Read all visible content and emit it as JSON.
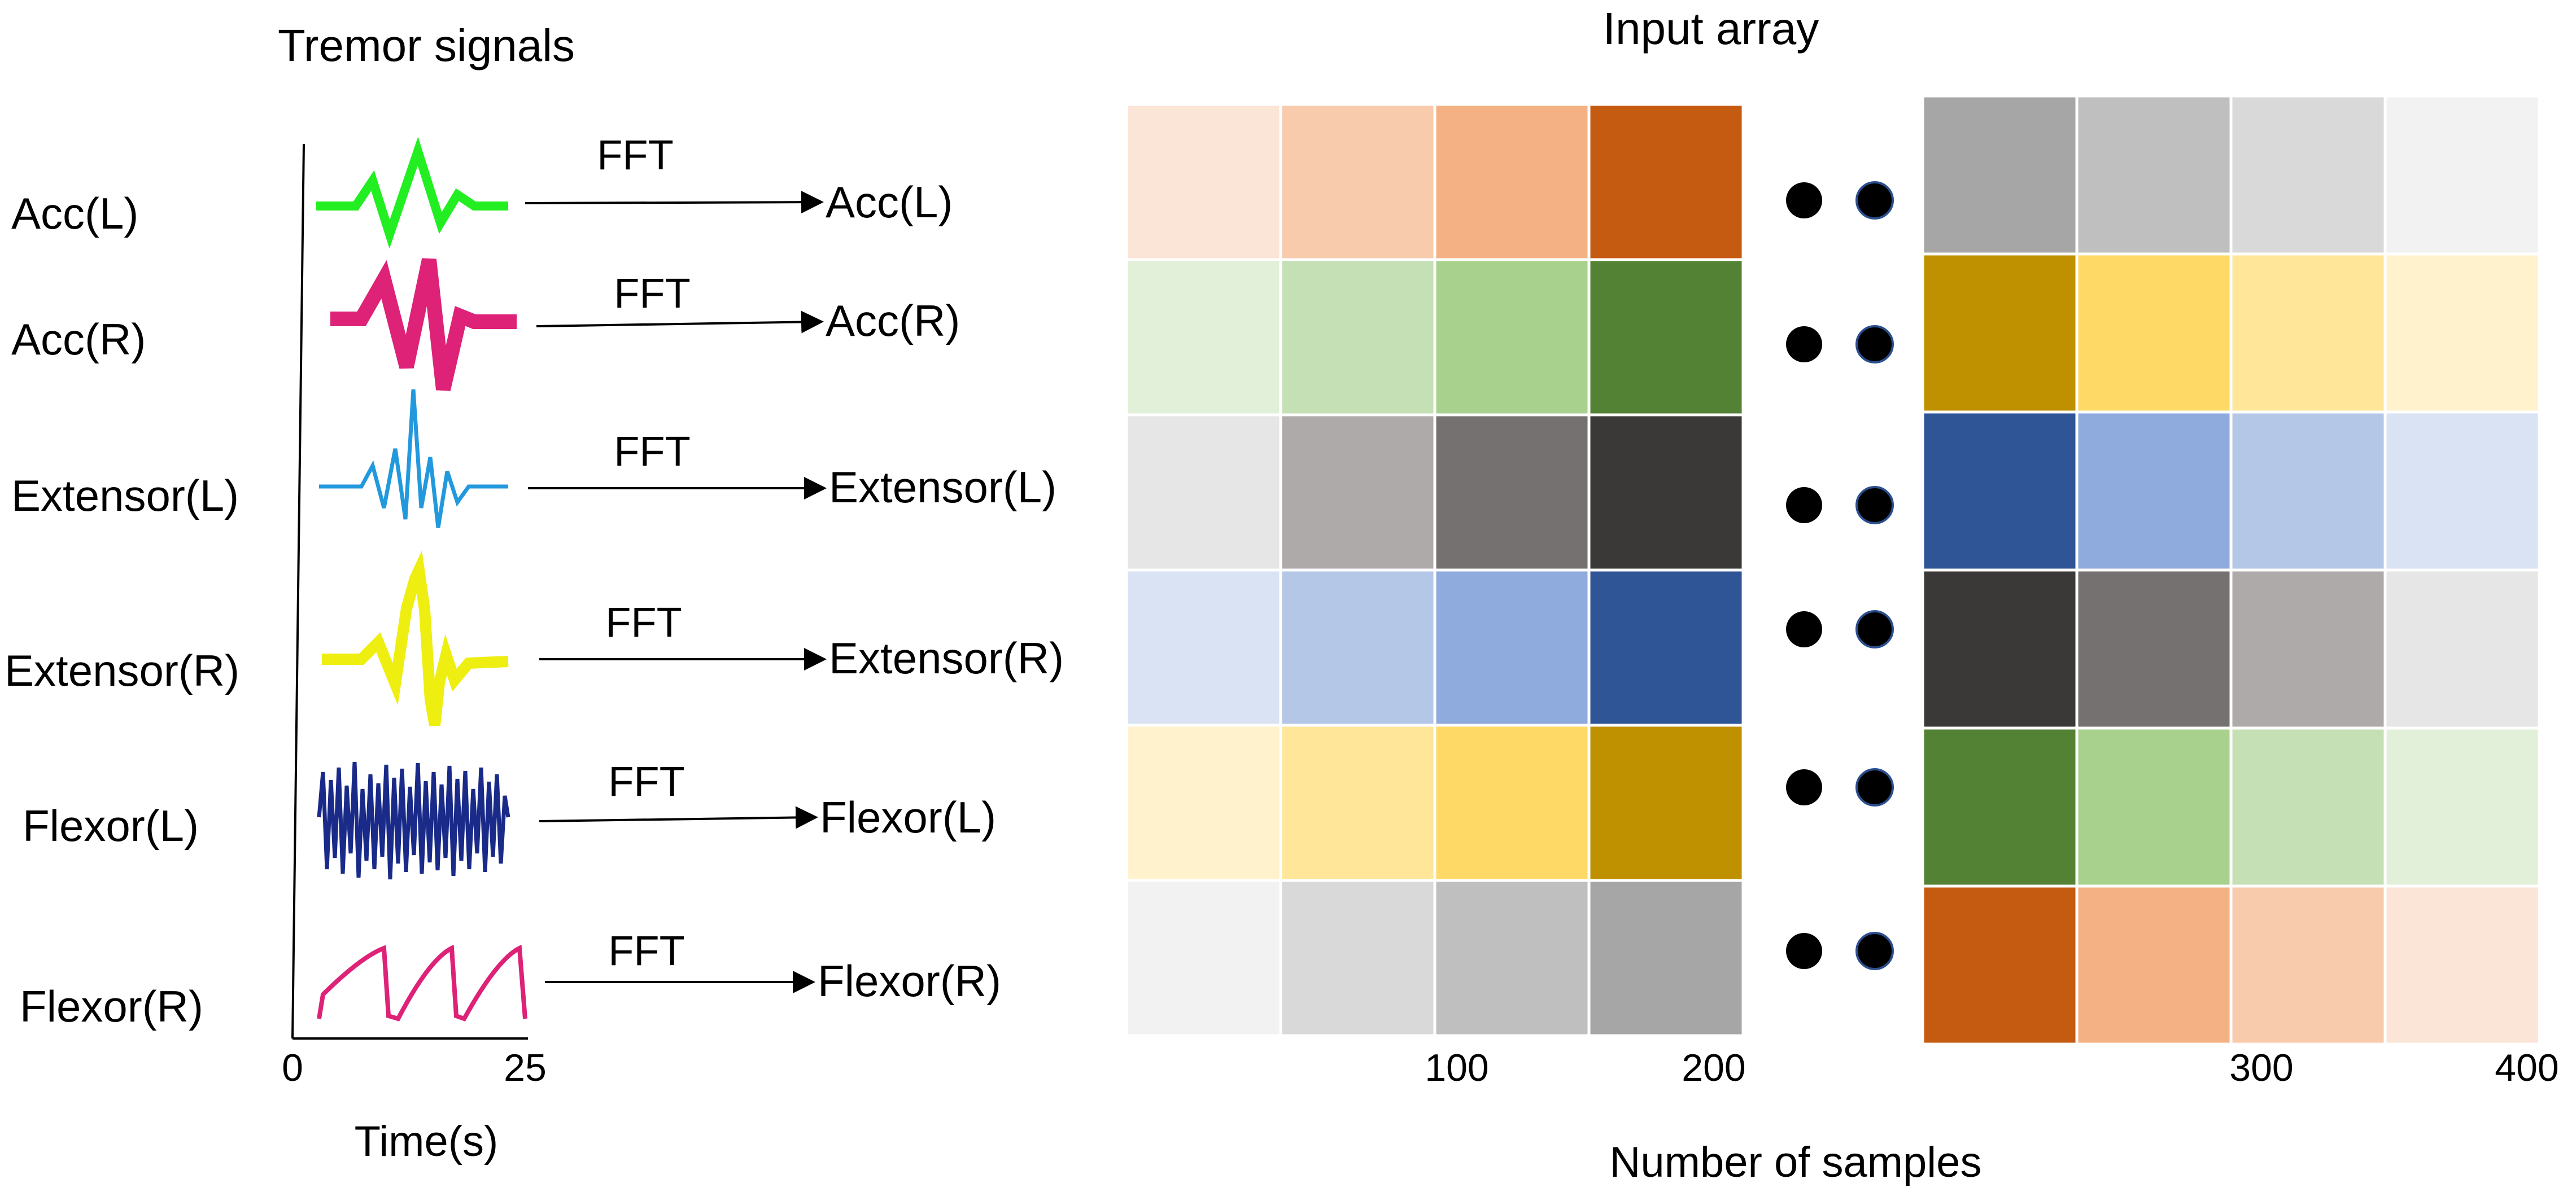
{
  "left_panel": {
    "title": "Tremor signals",
    "row_labels": [
      "Acc(L)",
      "Acc(R)",
      "Extensor(L)",
      "Extensor(R)",
      "Flexor(L)",
      "Flexor(R)"
    ],
    "fft_label": "FFT",
    "transformed_labels": [
      "Acc(L)",
      "Acc(R)",
      "Extensor(L)",
      "Extensor(R)",
      "Flexor(L)",
      "Flexor(R)"
    ],
    "x_ticks": [
      "0",
      "25"
    ],
    "x_axis_title": "Time(s)",
    "signal_colors": [
      "#22ee22",
      "#dd2277",
      "#2299dd",
      "#eeee11",
      "#1a2a88",
      "#dd2277"
    ]
  },
  "right_panel": {
    "title": "Input array",
    "left_block_ticks": [
      "100",
      "200"
    ],
    "right_block_ticks": [
      "300",
      "400"
    ],
    "x_axis_title": "Number of samples",
    "left_block_colors": [
      [
        "#fbe5d6",
        "#f8cbad",
        "#f4b183",
        "#c55a11"
      ],
      [
        "#e2f0d9",
        "#c5e0b4",
        "#a9d18e",
        "#548235"
      ],
      [
        "#e7e6e6",
        "#aeaaaa",
        "#767171",
        "#3b3838"
      ],
      [
        "#dae3f3",
        "#b4c7e7",
        "#8faadc",
        "#2f5597"
      ],
      [
        "#fff2cc",
        "#ffe699",
        "#ffd966",
        "#bf9000"
      ],
      [
        "#f2f2f2",
        "#d9d9d9",
        "#bfbfbf",
        "#a6a6a6"
      ]
    ],
    "right_block_colors": [
      [
        "#a6a6a6",
        "#bfbfbf",
        "#d9d9d9",
        "#f2f2f2"
      ],
      [
        "#bf9000",
        "#ffd966",
        "#ffe699",
        "#fff2cc"
      ],
      [
        "#2f5597",
        "#8faadc",
        "#b4c7e7",
        "#dae3f3"
      ],
      [
        "#3b3838",
        "#767171",
        "#aeaaaa",
        "#e7e6e6"
      ],
      [
        "#548235",
        "#a9d18e",
        "#c5e0b4",
        "#e2f0d9"
      ],
      [
        "#c55a11",
        "#f4b183",
        "#f8cbad",
        "#fbe5d6"
      ]
    ]
  }
}
